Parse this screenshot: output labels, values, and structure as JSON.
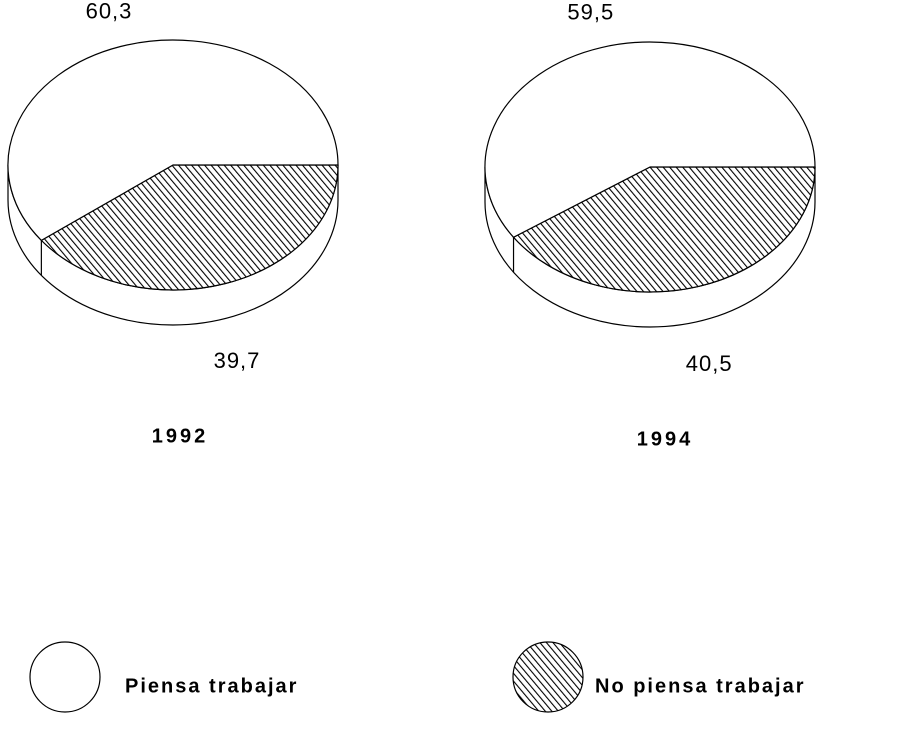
{
  "chart_data": [
    {
      "type": "pie",
      "title": "1992",
      "values": [
        60.3,
        39.7
      ],
      "value_labels": [
        "60,3",
        "39,7"
      ],
      "fills": [
        "white",
        "hatch"
      ]
    },
    {
      "type": "pie",
      "title": "1994",
      "values": [
        59.5,
        40.5
      ],
      "value_labels": [
        "59,5",
        "40,5"
      ],
      "fills": [
        "white",
        "hatch"
      ]
    }
  ],
  "legend": {
    "entries": [
      {
        "name": "Piensa trabajar",
        "fill": "white"
      },
      {
        "name": "No piensa trabajar",
        "fill": "hatch"
      }
    ]
  }
}
